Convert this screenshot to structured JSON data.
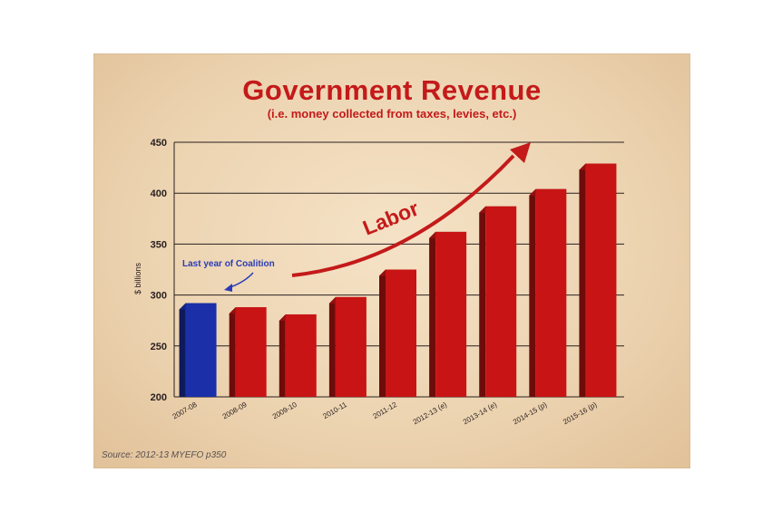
{
  "title": "Government Revenue",
  "subtitle": "(i.e. money collected from taxes, levies, etc.)",
  "source": "Source: 2012-13 MYEFO p350",
  "chart_data": {
    "type": "bar",
    "ylabel": "$ billions",
    "xlabel": "",
    "ylim": [
      200,
      450
    ],
    "yticks": [
      200,
      250,
      300,
      350,
      400,
      450
    ],
    "grid": true,
    "categories": [
      "2007-08",
      "2008-09",
      "2009-10",
      "2010-11",
      "2011-12",
      "2012-13 (e)",
      "2013-14 (e)",
      "2014-15 (p)",
      "2015-16 (p)"
    ],
    "values": [
      292,
      288,
      281,
      298,
      325,
      362,
      387,
      404,
      429
    ],
    "bar_colors": [
      "#1a2fa8",
      "#c81414",
      "#c81414",
      "#c81414",
      "#c81414",
      "#c81414",
      "#c81414",
      "#c81414",
      "#c81414"
    ],
    "annotations": [
      {
        "text": "Last year of Coalition",
        "color": "#2a3bb8"
      },
      {
        "text": "Labor",
        "color": "#c41a1a"
      }
    ]
  }
}
